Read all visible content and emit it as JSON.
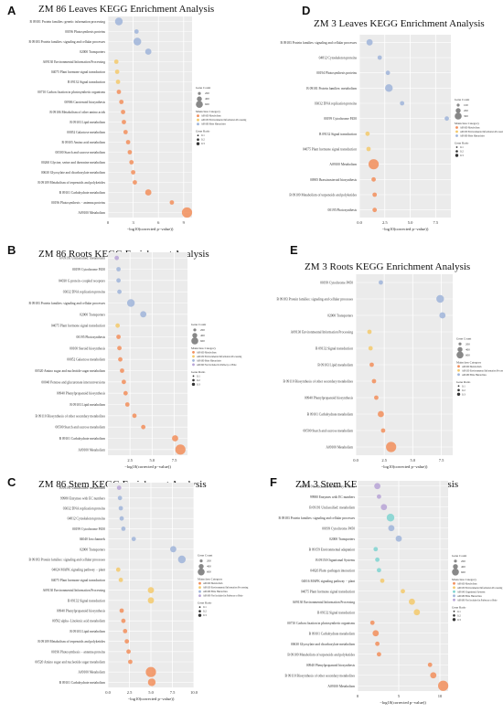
{
  "legend": {
    "gene_count_title": "Gene Count",
    "category_title": "Mainclass Category",
    "gene_ratio_title": "Gene Ratio"
  },
  "xlabel": "−log10(corrected p−value))",
  "xlabel_B": "−log10(corrected p−value))",
  "colors": {
    "metabolism": "#f28e5b",
    "env_info": "#f3c96b",
    "gen_info": "#9fb4d9",
    "organismal": "#7fd3d0",
    "cellular": "#c9b6e0",
    "not_included": "#b7a3d6"
  },
  "chart_data": [
    {
      "id": "A",
      "type": "scatter",
      "title": "ZM 86 Leaves KEGG Enrichment Analysis",
      "xticks": [
        "0",
        "3",
        "6",
        "9"
      ],
      "xlim": [
        0,
        10
      ],
      "legend_counts": [
        "200",
        "400",
        "600"
      ],
      "legend_ratios": [
        "0.1",
        "0.2",
        "0.3"
      ],
      "legend_categories": [
        "A09100 Metabolism",
        "A09130 Environmental Information Processing",
        "A09180 Brite Hierarchies"
      ],
      "terms": [
        {
          "label": "B 09181 Protein families: genetic information processing",
          "x": 1.3,
          "cat": "gen_info",
          "size": 3
        },
        {
          "label": "00196 Photosynthesis proteins",
          "x": 3.4,
          "cat": "gen_info",
          "size": 1
        },
        {
          "label": "B 09183 Protein families: signaling and cellular processes",
          "x": 3.5,
          "cat": "gen_info",
          "size": 3
        },
        {
          "label": "02000 Transporters",
          "x": 4.8,
          "cat": "gen_info",
          "size": 2
        },
        {
          "label": "A09130 Environmental Information Processing",
          "x": 1.0,
          "cat": "env_info",
          "size": 1
        },
        {
          "label": "04075 Plant hormone signal transduction",
          "x": 1.1,
          "cat": "env_info",
          "size": 1
        },
        {
          "label": "B 09132 Signal transduction",
          "x": 1.2,
          "cat": "env_info",
          "size": 1
        },
        {
          "label": "00710 Carbon fixation in photosynthetic organisms",
          "x": 1.3,
          "cat": "metabolism",
          "size": 1
        },
        {
          "label": "00906 Carotenoid biosynthesis",
          "x": 1.6,
          "cat": "metabolism",
          "size": 1
        },
        {
          "label": "B 09106 Metabolism of other amino acids",
          "x": 1.8,
          "cat": "metabolism",
          "size": 1
        },
        {
          "label": "B 09103 Lipid metabolism",
          "x": 1.9,
          "cat": "metabolism",
          "size": 1
        },
        {
          "label": "00052 Galactose metabolism",
          "x": 2.1,
          "cat": "metabolism",
          "size": 1
        },
        {
          "label": "B 09105 Amino acid metabolism",
          "x": 2.4,
          "cat": "metabolism",
          "size": 1
        },
        {
          "label": "00500 Starch and sucrose metabolism",
          "x": 2.6,
          "cat": "metabolism",
          "size": 1
        },
        {
          "label": "00260 Glycine, serine and threonine metabolism",
          "x": 2.8,
          "cat": "metabolism",
          "size": 1
        },
        {
          "label": "00630 Glyoxylate and dicarboxylate metabolism",
          "x": 3.0,
          "cat": "metabolism",
          "size": 1
        },
        {
          "label": "B 09109 Metabolism of terpenoids and polyketides",
          "x": 3.2,
          "cat": "metabolism",
          "size": 1
        },
        {
          "label": "B 09101 Carbohydrate metabolism",
          "x": 4.8,
          "cat": "metabolism",
          "size": 2
        },
        {
          "label": "00196 Photosynthesis − antenna proteins",
          "x": 7.6,
          "cat": "metabolism",
          "size": 1
        },
        {
          "label": "A09100 Metabolism",
          "x": 9.4,
          "cat": "metabolism",
          "size": 4
        }
      ]
    },
    {
      "id": "B",
      "type": "scatter",
      "title": "ZM 86 Roots KEGG Enrichment Analysis",
      "xticks": [
        "2.5",
        "5.0",
        "7.5"
      ],
      "xlim": [
        0,
        9
      ],
      "legend_counts": [
        "200",
        "400",
        "600"
      ],
      "legend_ratios": [
        "0.1",
        "0.2",
        "0.3"
      ],
      "legend_categories": [
        "A09100 Metabolism",
        "A09130 Environmental Information Processing",
        "A09180 Brite Hierarchies",
        "A09190 Not Included in Pathway or Brite"
      ],
      "terms": [
        {
          "label": "B 09191 Unclassified: metabolism",
          "x": 1.0,
          "cat": "not_included",
          "size": 1
        },
        {
          "label": "00199 Cytochrome P450",
          "x": 1.2,
          "cat": "gen_info",
          "size": 1
        },
        {
          "label": "04030 G protein−coupled receptors",
          "x": 1.2,
          "cat": "gen_info",
          "size": 1
        },
        {
          "label": "03032 DNA replication proteins",
          "x": 1.3,
          "cat": "gen_info",
          "size": 1
        },
        {
          "label": "B 09183 Protein families: signaling and cellular processes",
          "x": 2.6,
          "cat": "gen_info",
          "size": 3
        },
        {
          "label": "02000 Transporters",
          "x": 4.0,
          "cat": "gen_info",
          "size": 2
        },
        {
          "label": "04075 Plant hormone signal transduction",
          "x": 1.1,
          "cat": "env_info",
          "size": 1
        },
        {
          "label": "00195 Photosynthesis",
          "x": 1.2,
          "cat": "metabolism",
          "size": 1
        },
        {
          "label": "00100 Steroid biosynthesis",
          "x": 1.3,
          "cat": "metabolism",
          "size": 1
        },
        {
          "label": "00052 Galactose metabolism",
          "x": 1.4,
          "cat": "metabolism",
          "size": 1
        },
        {
          "label": "00520 Amino sugar and nucleotide sugar metabolism",
          "x": 1.6,
          "cat": "metabolism",
          "size": 1
        },
        {
          "label": "00040 Pentose and glucuronate interconversions",
          "x": 1.8,
          "cat": "metabolism",
          "size": 1
        },
        {
          "label": "00940 Phenylpropanoid biosynthesis",
          "x": 2.0,
          "cat": "metabolism",
          "size": 1
        },
        {
          "label": "B 09103 Lipid metabolism",
          "x": 2.2,
          "cat": "metabolism",
          "size": 1
        },
        {
          "label": "B 09110 Biosynthesis of other secondary metabolites",
          "x": 3.0,
          "cat": "metabolism",
          "size": 1
        },
        {
          "label": "00500 Starch and sucrose metabolism",
          "x": 4.0,
          "cat": "metabolism",
          "size": 1
        },
        {
          "label": "B 09101 Carbohydrate metabolism",
          "x": 7.6,
          "cat": "metabolism",
          "size": 2
        },
        {
          "label": "A09100 Metabolism",
          "x": 8.2,
          "cat": "metabolism",
          "size": 4
        }
      ]
    },
    {
      "id": "C",
      "type": "scatter",
      "title": "ZM 86 Stem KEGG Enrichment Analysis",
      "xticks": [
        "0.0",
        "2.5",
        "5.0",
        "7.5",
        "10.0"
      ],
      "xlim": [
        0,
        10
      ],
      "legend_counts": [
        "200",
        "400",
        "600"
      ],
      "legend_ratios": [
        "0.1",
        "0.2",
        "0.3"
      ],
      "legend_categories": [
        "A09100 Metabolism",
        "A09130 Environmental Information Processing",
        "A09180 Brite Hierarchies",
        "A09190 Not Included in Pathway or Brite"
      ],
      "terms": [
        {
          "label": "B 09191 Unclassified: metabolism",
          "x": 1.3,
          "cat": "not_included",
          "size": 1
        },
        {
          "label": "99980 Enzymes with EC numbers",
          "x": 1.4,
          "cat": "gen_info",
          "size": 1
        },
        {
          "label": "03032 DNA replication proteins",
          "x": 1.5,
          "cat": "gen_info",
          "size": 1
        },
        {
          "label": "04812 Cytoskeleton proteins",
          "x": 1.6,
          "cat": "gen_info",
          "size": 1
        },
        {
          "label": "00199 Cytochrome P450",
          "x": 1.8,
          "cat": "gen_info",
          "size": 1
        },
        {
          "label": "04040 Ion channels",
          "x": 3.0,
          "cat": "gen_info",
          "size": 1
        },
        {
          "label": "02000 Transporters",
          "x": 7.6,
          "cat": "gen_info",
          "size": 2
        },
        {
          "label": "B 09183 Protein families: signaling and cellular processes",
          "x": 8.6,
          "cat": "gen_info",
          "size": 3
        },
        {
          "label": "04024 MAPK signaling pathway − plant",
          "x": 1.2,
          "cat": "env_info",
          "size": 1
        },
        {
          "label": "04075 Plant hormone signal transduction",
          "x": 1.5,
          "cat": "env_info",
          "size": 1
        },
        {
          "label": "A09130 Environmental Information Processing",
          "x": 5.0,
          "cat": "env_info",
          "size": 2
        },
        {
          "label": "B 09132 Signal transduction",
          "x": 5.0,
          "cat": "env_info",
          "size": 2
        },
        {
          "label": "00940 Phenylpropanoid biosynthesis",
          "x": 1.6,
          "cat": "metabolism",
          "size": 1
        },
        {
          "label": "00592 alpha−Linolenic acid metabolism",
          "x": 1.8,
          "cat": "metabolism",
          "size": 1
        },
        {
          "label": "B 09103 Lipid metabolism",
          "x": 2.0,
          "cat": "metabolism",
          "size": 1
        },
        {
          "label": "B 09109 Metabolism of terpenoids and polyketides",
          "x": 2.2,
          "cat": "metabolism",
          "size": 1
        },
        {
          "label": "00196 Photosynthesis − antenna proteins",
          "x": 2.4,
          "cat": "metabolism",
          "size": 1
        },
        {
          "label": "00520 Amino sugar and nucleotide sugar metabolism",
          "x": 2.6,
          "cat": "metabolism",
          "size": 1
        },
        {
          "label": "A09100 Metabolism",
          "x": 5.0,
          "cat": "metabolism",
          "size": 4
        },
        {
          "label": "B 09101 Carbohydrate metabolism",
          "x": 5.1,
          "cat": "metabolism",
          "size": 3
        }
      ]
    },
    {
      "id": "D",
      "type": "scatter",
      "title": "ZM 3 Leaves KEGG Enrichment Analysis",
      "xticks": [
        "0.0",
        "2.5",
        "5.0",
        "7.5"
      ],
      "xlim": [
        0,
        9
      ],
      "legend_counts": [
        "100",
        "200",
        "300"
      ],
      "legend_ratios": [
        "0.1",
        "0.2",
        "0.3"
      ],
      "legend_categories": [
        "A09100 Metabolism",
        "A09130 Environmental Information Processing",
        "A09180 Brite Hierarchies"
      ],
      "terms": [
        {
          "label": "B 09183 Protein families: signaling and cellular processes",
          "x": 1.0,
          "cat": "gen_info",
          "size": 2
        },
        {
          "label": "04812 Cytoskeleton proteins",
          "x": 2.0,
          "cat": "gen_info",
          "size": 1
        },
        {
          "label": "00194 Photosynthesis proteins",
          "x": 2.8,
          "cat": "gen_info",
          "size": 1
        },
        {
          "label": "B 09181 Protein families: metabolism",
          "x": 2.9,
          "cat": "gen_info",
          "size": 3
        },
        {
          "label": "03032 DNA replication proteins",
          "x": 4.2,
          "cat": "gen_info",
          "size": 1
        },
        {
          "label": "00199 Cytochrome P450",
          "x": 8.6,
          "cat": "gen_info",
          "size": 1
        },
        {
          "label": "B 09132 Signal transduction",
          "x": 0.8,
          "cat": "env_info",
          "size": 1
        },
        {
          "label": "04075 Plant hormone signal transduction",
          "x": 0.9,
          "cat": "env_info",
          "size": 1
        },
        {
          "label": "A09100 Metabolism",
          "x": 1.4,
          "cat": "metabolism",
          "size": 4
        },
        {
          "label": "00905 Brassinosteroid biosynthesis",
          "x": 1.4,
          "cat": "metabolism",
          "size": 1
        },
        {
          "label": "B 09109 Metabolism of terpenoids and polyketides",
          "x": 1.5,
          "cat": "metabolism",
          "size": 1
        },
        {
          "label": "00195 Photosynthesis",
          "x": 1.5,
          "cat": "metabolism",
          "size": 1
        }
      ]
    },
    {
      "id": "E",
      "type": "scatter",
      "title": "ZM 3 Roots KEGG Enrichment Analysis",
      "xticks": [
        "0.0",
        "2.5",
        "5.0",
        "7.5"
      ],
      "xlim": [
        0,
        8.5
      ],
      "legend_counts": [
        "200",
        "400",
        "600"
      ],
      "legend_ratios": [
        "0.1",
        "0.2",
        "0.3"
      ],
      "legend_categories": [
        "A09100 Metabolism",
        "A09130 Environmental Information Processing",
        "A09180 Brite Hierarchies"
      ],
      "terms": [
        {
          "label": "00199 Cytochrome P450",
          "x": 2.2,
          "cat": "gen_info",
          "size": 1
        },
        {
          "label": "B 09183 Protein families: signaling and cellular processes",
          "x": 7.4,
          "cat": "gen_info",
          "size": 3
        },
        {
          "label": "02000 Transporters",
          "x": 7.6,
          "cat": "gen_info",
          "size": 2
        },
        {
          "label": "A09130 Environmental Information Processing",
          "x": 1.2,
          "cat": "env_info",
          "size": 1
        },
        {
          "label": "B 09132 Signal transduction",
          "x": 1.3,
          "cat": "env_info",
          "size": 1
        },
        {
          "label": "B 09103 Lipid metabolism",
          "x": 1.4,
          "cat": "metabolism",
          "size": 1
        },
        {
          "label": "B 09110 Biosynthesis of other secondary metabolites",
          "x": 1.6,
          "cat": "metabolism",
          "size": 1
        },
        {
          "label": "00940 Phenylpropanoid biosynthesis",
          "x": 1.8,
          "cat": "metabolism",
          "size": 1
        },
        {
          "label": "B 09101 Carbohydrate metabolism",
          "x": 2.2,
          "cat": "metabolism",
          "size": 2
        },
        {
          "label": "00500 Starch and sucrose metabolism",
          "x": 2.4,
          "cat": "metabolism",
          "size": 1
        },
        {
          "label": "A09100 Metabolism",
          "x": 3.1,
          "cat": "metabolism",
          "size": 4
        }
      ]
    },
    {
      "id": "F",
      "type": "scatter",
      "title": "ZM 3 Stem KEGG Enrichment Analysis",
      "xticks": [
        "0",
        "5",
        "10"
      ],
      "xlim": [
        0,
        11
      ],
      "legend_counts": [
        "200",
        "400",
        "600"
      ],
      "legend_ratios": [
        "0.1",
        "0.2",
        "0.3"
      ],
      "legend_categories": [
        "A09100 Metabolism",
        "A09130 Environmental Information Processing",
        "A09140 Organismal Systems",
        "A09180 Brite Hierarchies",
        "A09190 Not Included in Pathway or Brite"
      ],
      "terms": [
        {
          "label": "A09190 Not Included in Pathway or Brite",
          "x": 2.4,
          "cat": "not_included",
          "size": 2
        },
        {
          "label": "99980 Enzymes with EC numbers",
          "x": 2.6,
          "cat": "not_included",
          "size": 1
        },
        {
          "label": "B 09191 Unclassified: metabolism",
          "x": 3.2,
          "cat": "not_included",
          "size": 2
        },
        {
          "label": "B 09183 Protein families: signaling and cellular processes",
          "x": 4.0,
          "cat": "organismal",
          "size": 3
        },
        {
          "label": "00199 Cytochrome P450",
          "x": 4.1,
          "cat": "gen_info",
          "size": 2
        },
        {
          "label": "02000 Transporters",
          "x": 5.0,
          "cat": "gen_info",
          "size": 2
        },
        {
          "label": "B 09159 Environmental adaptation",
          "x": 2.2,
          "cat": "organismal",
          "size": 1
        },
        {
          "label": "B 09150 Organismal Systems",
          "x": 2.4,
          "cat": "organismal",
          "size": 1
        },
        {
          "label": "04626 Plant−pathogen interaction",
          "x": 2.6,
          "cat": "organismal",
          "size": 1
        },
        {
          "label": "04016 MAPK signaling pathway − plant",
          "x": 3.0,
          "cat": "env_info",
          "size": 1
        },
        {
          "label": "04075 Plant hormone signal transduction",
          "x": 5.5,
          "cat": "env_info",
          "size": 1
        },
        {
          "label": "A09130 Environmental Information Processing",
          "x": 6.6,
          "cat": "env_info",
          "size": 2
        },
        {
          "label": "B 09132 Signal transduction",
          "x": 7.2,
          "cat": "env_info",
          "size": 2
        },
        {
          "label": "00710 Carbon fixation in photosynthetic organisms",
          "x": 1.8,
          "cat": "metabolism",
          "size": 1
        },
        {
          "label": "B 09101 Carbohydrate metabolism",
          "x": 2.2,
          "cat": "metabolism",
          "size": 2
        },
        {
          "label": "00630 Glyoxylate and dicarboxylate metabolism",
          "x": 2.4,
          "cat": "metabolism",
          "size": 1
        },
        {
          "label": "B 09109 Metabolism of terpenoids and polyketides",
          "x": 2.6,
          "cat": "metabolism",
          "size": 1
        },
        {
          "label": "00940 Phenylpropanoid biosynthesis",
          "x": 8.8,
          "cat": "metabolism",
          "size": 1
        },
        {
          "label": "B 09110 Biosynthesis of other secondary metabolites",
          "x": 9.2,
          "cat": "metabolism",
          "size": 2
        },
        {
          "label": "A09100 Metabolism",
          "x": 10.4,
          "cat": "metabolism",
          "size": 4
        }
      ]
    }
  ]
}
